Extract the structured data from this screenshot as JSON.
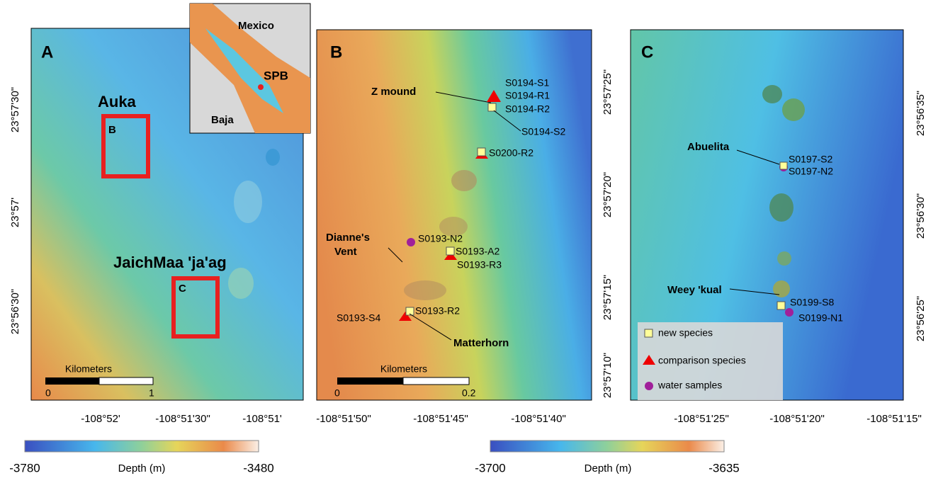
{
  "panel_a": {
    "label": "A",
    "x_ticks": [
      "-108°52'",
      "-108°51'30\"",
      "-108°51'"
    ],
    "y_ticks": [
      "23°57'30\"",
      "23°57'",
      "23°56'30\""
    ],
    "sites": [
      "Auka",
      "JaichMaa 'ja'ag"
    ],
    "boxes": [
      "B",
      "C"
    ],
    "scale": {
      "title": "Kilometers",
      "start": "0",
      "end": "1"
    }
  },
  "inset": {
    "labels": [
      "Mexico",
      "Baja",
      "SPB"
    ]
  },
  "panel_b": {
    "label": "B",
    "x_ticks": [
      "-108°51'50\"",
      "-108°51'45\"",
      "-108°51'40\""
    ],
    "y_ticks": [
      "23°57'25\"",
      "23°57'20\"",
      "23°57'15\"",
      "23°57'10\""
    ],
    "features": {
      "z_mound": "Z mound",
      "diannes_vent": [
        "Dianne's",
        "Vent"
      ],
      "matterhorn": "Matterhorn"
    },
    "samples": [
      "S0194-S1",
      "S0194-R1",
      "S0194-R2",
      "S0194-S2",
      "S0200-R2",
      "S0193-N2",
      "S0193-A2",
      "S0193-R3",
      "S0193-S4",
      "S0193-R2"
    ],
    "scale": {
      "title": "Kilometers",
      "start": "0",
      "end": "0.2"
    }
  },
  "panel_c": {
    "label": "C",
    "x_ticks": [
      "-108°51'25\"",
      "-108°51'20\"",
      "-108°51'15\""
    ],
    "y_ticks": [
      "23°56'35\"",
      "23°56'30\"",
      "23°56'25\""
    ],
    "features": [
      "Abuelita",
      "Weey 'kual"
    ],
    "samples": [
      "S0197-S2",
      "S0197-N2",
      "S0199-S8",
      "S0199-N1"
    ],
    "legend": [
      "new species",
      "comparison species",
      "water samples"
    ]
  },
  "colorbars": [
    {
      "min": "-3780",
      "title": "Depth (m)",
      "max": "-3480"
    },
    {
      "min": "-3700",
      "title": "Depth (m)",
      "max": "-3635"
    }
  ]
}
